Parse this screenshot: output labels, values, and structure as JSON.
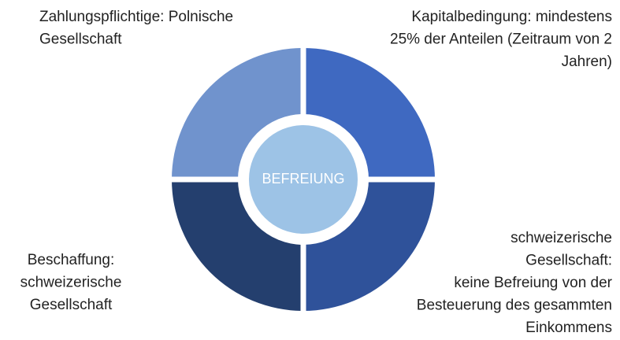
{
  "center": {
    "label": "BEFREIUNG"
  },
  "blocks": [
    {
      "lines": [
        "Zahlungspflichtige: Polnische",
        "Gesellschaft"
      ]
    },
    {
      "lines": [
        "Kapitalbedingung: mindestens",
        "25% der Anteilen (Zeitraum von 2",
        "Jahren)"
      ]
    },
    {
      "lines": [
        "schweizerische",
        "Gesellschaft:",
        "keine Befreiung von der",
        "Besteuerung des gesammten",
        "Einkommens"
      ]
    },
    {
      "lines": [
        "Beschaffung:",
        "schweizerische",
        "Gesellschaft"
      ]
    }
  ]
}
